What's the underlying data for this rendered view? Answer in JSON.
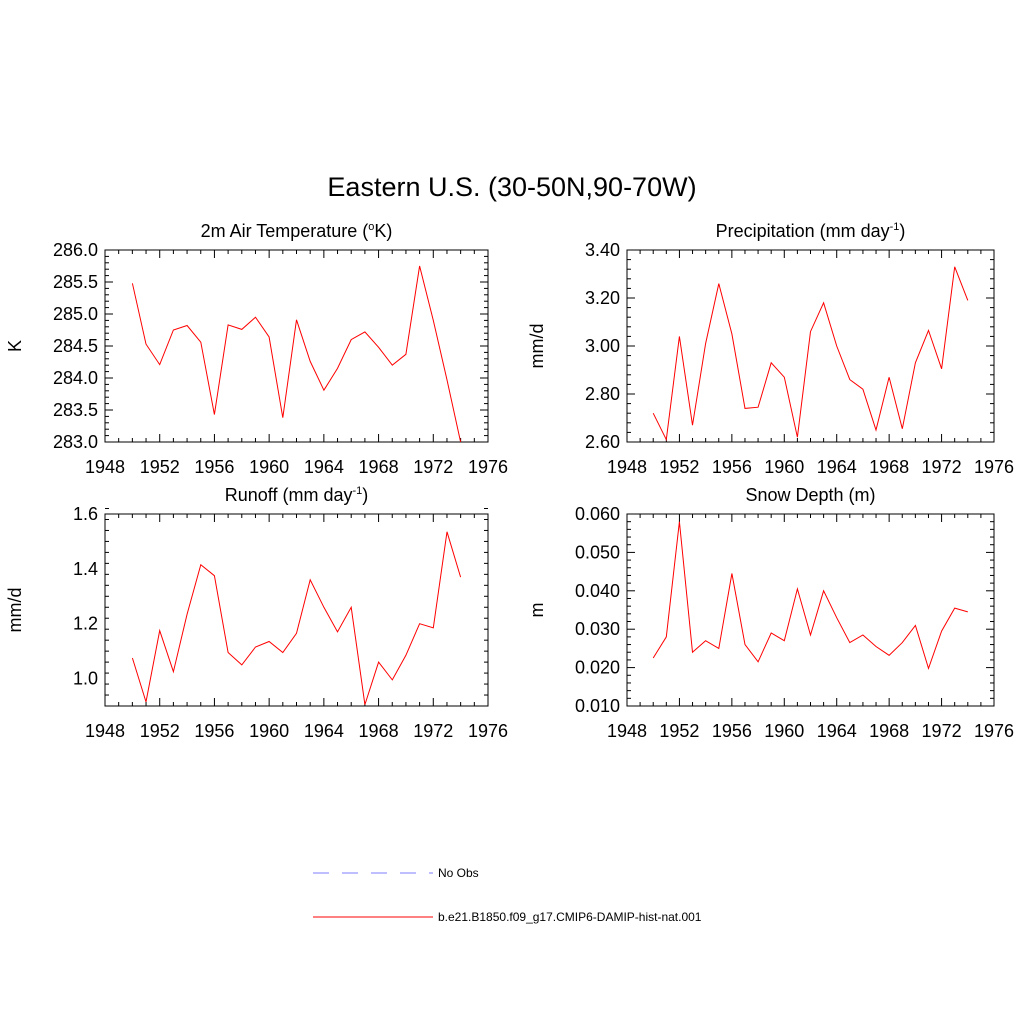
{
  "title": "Eastern U.S. (30-50N,90-70W)",
  "colors": {
    "model_line": "#ff0000",
    "obs_line": "#9999ff",
    "axis": "#000000"
  },
  "legend": {
    "obs_label": "No Obs",
    "model_label": "b.e21.B1850.f09_g17.CMIP6-DAMIP-hist-nat.001",
    "placement": "bottom-center"
  },
  "chart_data": [
    {
      "type": "line",
      "title": "2m Air Temperature (",
      "title_sup": "o",
      "title_tail": "K)",
      "ylabel": "K",
      "xlim": [
        1948,
        1976
      ],
      "ylim": [
        283.0,
        286.0
      ],
      "xticks": [
        1948,
        1952,
        1956,
        1960,
        1964,
        1968,
        1972,
        1976
      ],
      "xtick_labels": [
        "1948",
        "1952",
        "1956",
        "1960",
        "1964",
        "1968",
        "1972",
        "1976"
      ],
      "yticks": [
        283.0,
        283.5,
        284.0,
        284.5,
        285.0,
        285.5,
        286.0
      ],
      "ytick_labels": [
        "283.0",
        "283.5",
        "284.0",
        "284.5",
        "285.0",
        "285.5",
        "286.0"
      ],
      "x": [
        1950,
        1951,
        1952,
        1953,
        1954,
        1955,
        1956,
        1957,
        1958,
        1959,
        1960,
        1961,
        1962,
        1963,
        1964,
        1965,
        1966,
        1967,
        1968,
        1969,
        1970,
        1971,
        1972,
        1973,
        1974
      ],
      "series": [
        {
          "values": [
            285.48,
            284.53,
            284.21,
            284.75,
            284.82,
            284.56,
            283.43,
            284.83,
            284.76,
            284.95,
            284.64,
            283.38,
            284.91,
            284.26,
            283.81,
            284.15,
            284.6,
            284.72,
            284.48,
            284.2,
            284.37,
            285.75,
            284.9,
            283.97,
            283.0
          ]
        }
      ]
    },
    {
      "type": "line",
      "title": "Precipitation (mm day",
      "title_sup": "-1",
      "title_tail": ")",
      "ylabel": "mm/d",
      "xlim": [
        1948,
        1976
      ],
      "ylim": [
        2.6,
        3.4
      ],
      "xticks": [
        1948,
        1952,
        1956,
        1960,
        1964,
        1968,
        1972,
        1976
      ],
      "xtick_labels": [
        "1948",
        "1952",
        "1956",
        "1960",
        "1964",
        "1968",
        "1972",
        "1976"
      ],
      "yticks": [
        2.6,
        2.8,
        3.0,
        3.2,
        3.4
      ],
      "ytick_labels": [
        "2.60",
        "2.80",
        "3.00",
        "3.20",
        "3.40"
      ],
      "x": [
        1950,
        1951,
        1952,
        1953,
        1954,
        1955,
        1956,
        1957,
        1958,
        1959,
        1960,
        1961,
        1962,
        1963,
        1964,
        1965,
        1966,
        1967,
        1968,
        1969,
        1970,
        1971,
        1972,
        1973,
        1974
      ],
      "series": [
        {
          "values": [
            2.72,
            2.61,
            3.04,
            2.67,
            3.01,
            3.26,
            3.05,
            2.74,
            2.745,
            2.93,
            2.87,
            2.62,
            3.06,
            3.18,
            3.0,
            2.86,
            2.82,
            2.65,
            2.87,
            2.655,
            2.93,
            3.065,
            2.905,
            3.33,
            3.19
          ]
        }
      ]
    },
    {
      "type": "line",
      "title": "Runoff (mm day",
      "title_sup": "-1",
      "title_tail": ")",
      "ylabel": "mm/d",
      "xlim": [
        1948,
        1976
      ],
      "ylim": [
        0.9,
        1.6
      ],
      "xticks": [
        1948,
        1952,
        1956,
        1960,
        1964,
        1968,
        1972,
        1976
      ],
      "xtick_labels": [
        "1948",
        "1952",
        "1956",
        "1960",
        "1964",
        "1968",
        "1972",
        "1976"
      ],
      "yticks": [
        1.0,
        1.2,
        1.4,
        1.6
      ],
      "ytick_labels": [
        "1.0",
        "1.2",
        "1.4",
        "1.6"
      ],
      "x": [
        1950,
        1951,
        1952,
        1953,
        1954,
        1955,
        1956,
        1957,
        1958,
        1959,
        1960,
        1961,
        1962,
        1963,
        1964,
        1965,
        1966,
        1967,
        1968,
        1969,
        1970,
        1971,
        1972,
        1973,
        1974
      ],
      "series": [
        {
          "values": [
            1.075,
            0.915,
            1.175,
            1.025,
            1.235,
            1.415,
            1.375,
            1.095,
            1.05,
            1.115,
            1.135,
            1.095,
            1.165,
            1.36,
            1.26,
            1.17,
            1.26,
            0.905,
            1.06,
            0.995,
            1.085,
            1.2,
            1.185,
            1.535,
            1.37
          ]
        }
      ]
    },
    {
      "type": "line",
      "title": "Snow Depth (m)",
      "title_sup": "",
      "title_tail": "",
      "ylabel": "m",
      "xlim": [
        1948,
        1976
      ],
      "ylim": [
        0.01,
        0.06
      ],
      "xticks": [
        1948,
        1952,
        1956,
        1960,
        1964,
        1968,
        1972,
        1976
      ],
      "xtick_labels": [
        "1948",
        "1952",
        "1956",
        "1960",
        "1964",
        "1968",
        "1972",
        "1976"
      ],
      "yticks": [
        0.01,
        0.02,
        0.03,
        0.04,
        0.05,
        0.06
      ],
      "ytick_labels": [
        "0.010",
        "0.020",
        "0.030",
        "0.040",
        "0.050",
        "0.060"
      ],
      "x": [
        1950,
        1951,
        1952,
        1953,
        1954,
        1955,
        1956,
        1957,
        1958,
        1959,
        1960,
        1961,
        1962,
        1963,
        1964,
        1965,
        1966,
        1967,
        1968,
        1969,
        1970,
        1971,
        1972,
        1973,
        1974
      ],
      "series": [
        {
          "values": [
            0.0225,
            0.028,
            0.058,
            0.024,
            0.027,
            0.025,
            0.0445,
            0.026,
            0.0215,
            0.029,
            0.027,
            0.0405,
            0.0285,
            0.04,
            0.033,
            0.0265,
            0.0285,
            0.0255,
            0.0232,
            0.0265,
            0.031,
            0.0198,
            0.0295,
            0.0355,
            0.0345
          ]
        }
      ]
    }
  ]
}
